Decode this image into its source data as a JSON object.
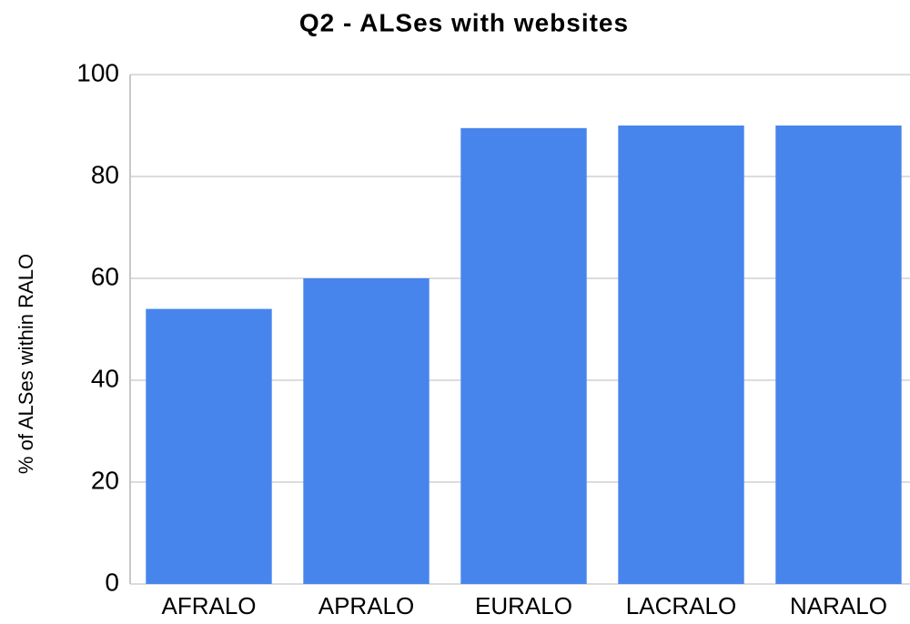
{
  "chart_data": {
    "type": "bar",
    "title": "Q2 - ALSes with websites",
    "y_label": "% of ALSes within RALO",
    "categories": [
      "AFRALO",
      "APRALO",
      "EURALO",
      "LACRALO",
      "NARALO"
    ],
    "values": [
      54,
      60,
      89.5,
      90,
      90
    ],
    "color": "#4785ed",
    "ylim": [
      0,
      100
    ],
    "yticks": [
      0,
      20,
      40,
      60,
      80,
      100
    ],
    "grid": true
  }
}
